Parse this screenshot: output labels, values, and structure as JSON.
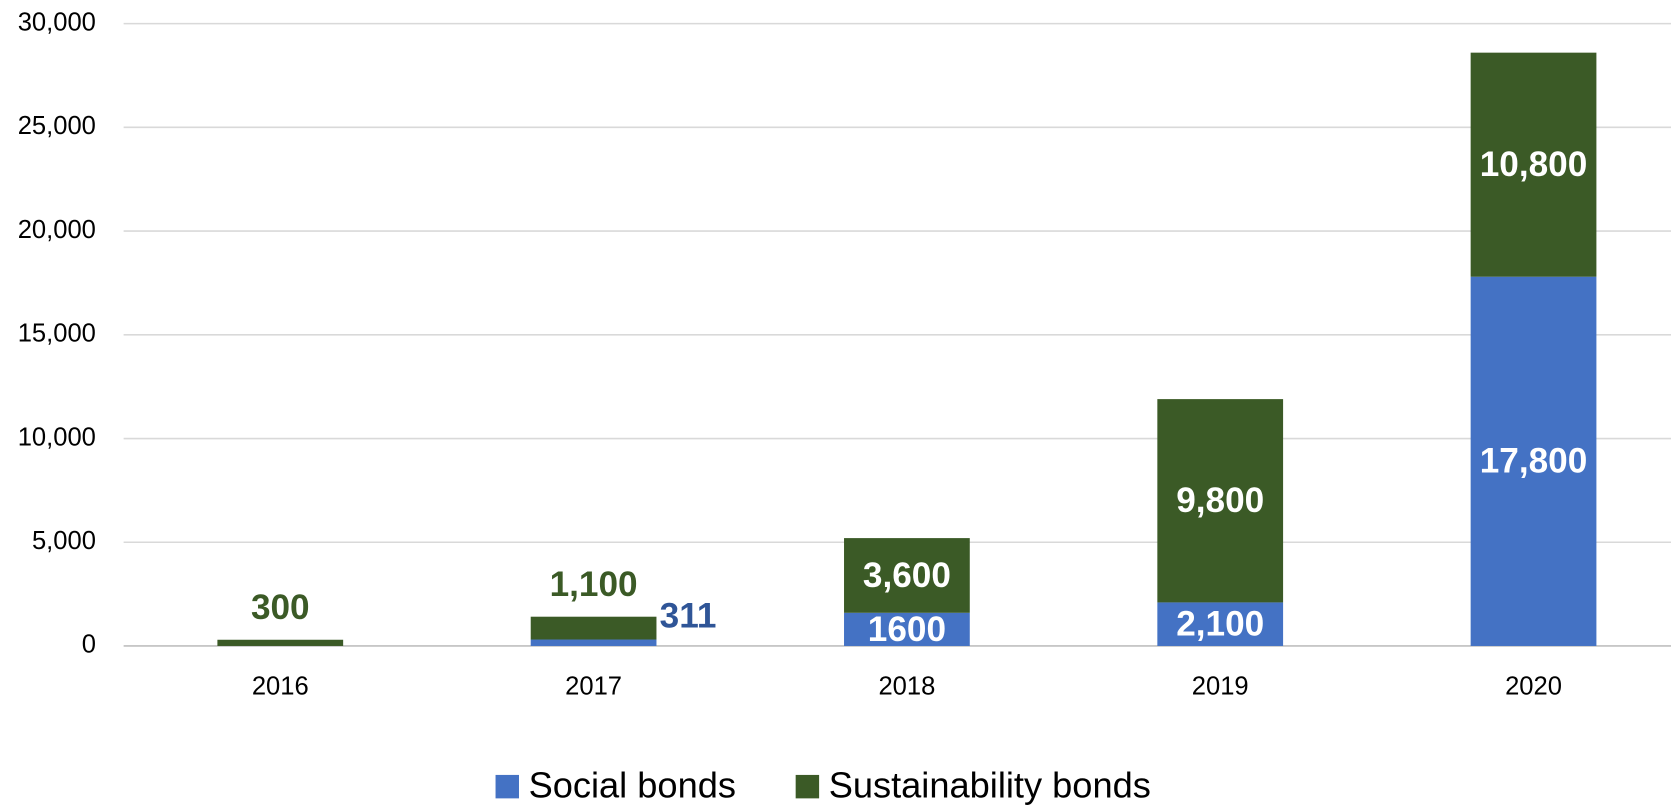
{
  "chart_data": {
    "type": "stacked_bar",
    "categories": [
      "2016",
      "2017",
      "2018",
      "2019",
      "2020"
    ],
    "series": [
      {
        "name": "Social bonds",
        "color": "#4472c4",
        "values": [
          0,
          311,
          1600,
          2100,
          17800
        ],
        "value_labels": [
          null,
          "311",
          "1600",
          "2,100",
          "17,800"
        ]
      },
      {
        "name": "Sustainability bonds",
        "color": "#3b5a26",
        "values": [
          300,
          1100,
          3600,
          9800,
          10800
        ],
        "value_labels": [
          "300",
          "1,100",
          "3,600",
          "9,800",
          "10,800"
        ]
      }
    ],
    "ylim": [
      0,
      30000
    ],
    "yticks": [
      0,
      {
        "value": 5000,
        "label": "5,000"
      },
      {
        "value": 10000,
        "label": "10,000"
      },
      {
        "value": 15000,
        "label": "15,000"
      },
      {
        "value": 20000,
        "label": "20,000"
      },
      {
        "value": 25000,
        "label": "25,000"
      },
      {
        "value": 30000,
        "label": "30,000"
      }
    ],
    "grid": true,
    "legend": "bottom"
  }
}
